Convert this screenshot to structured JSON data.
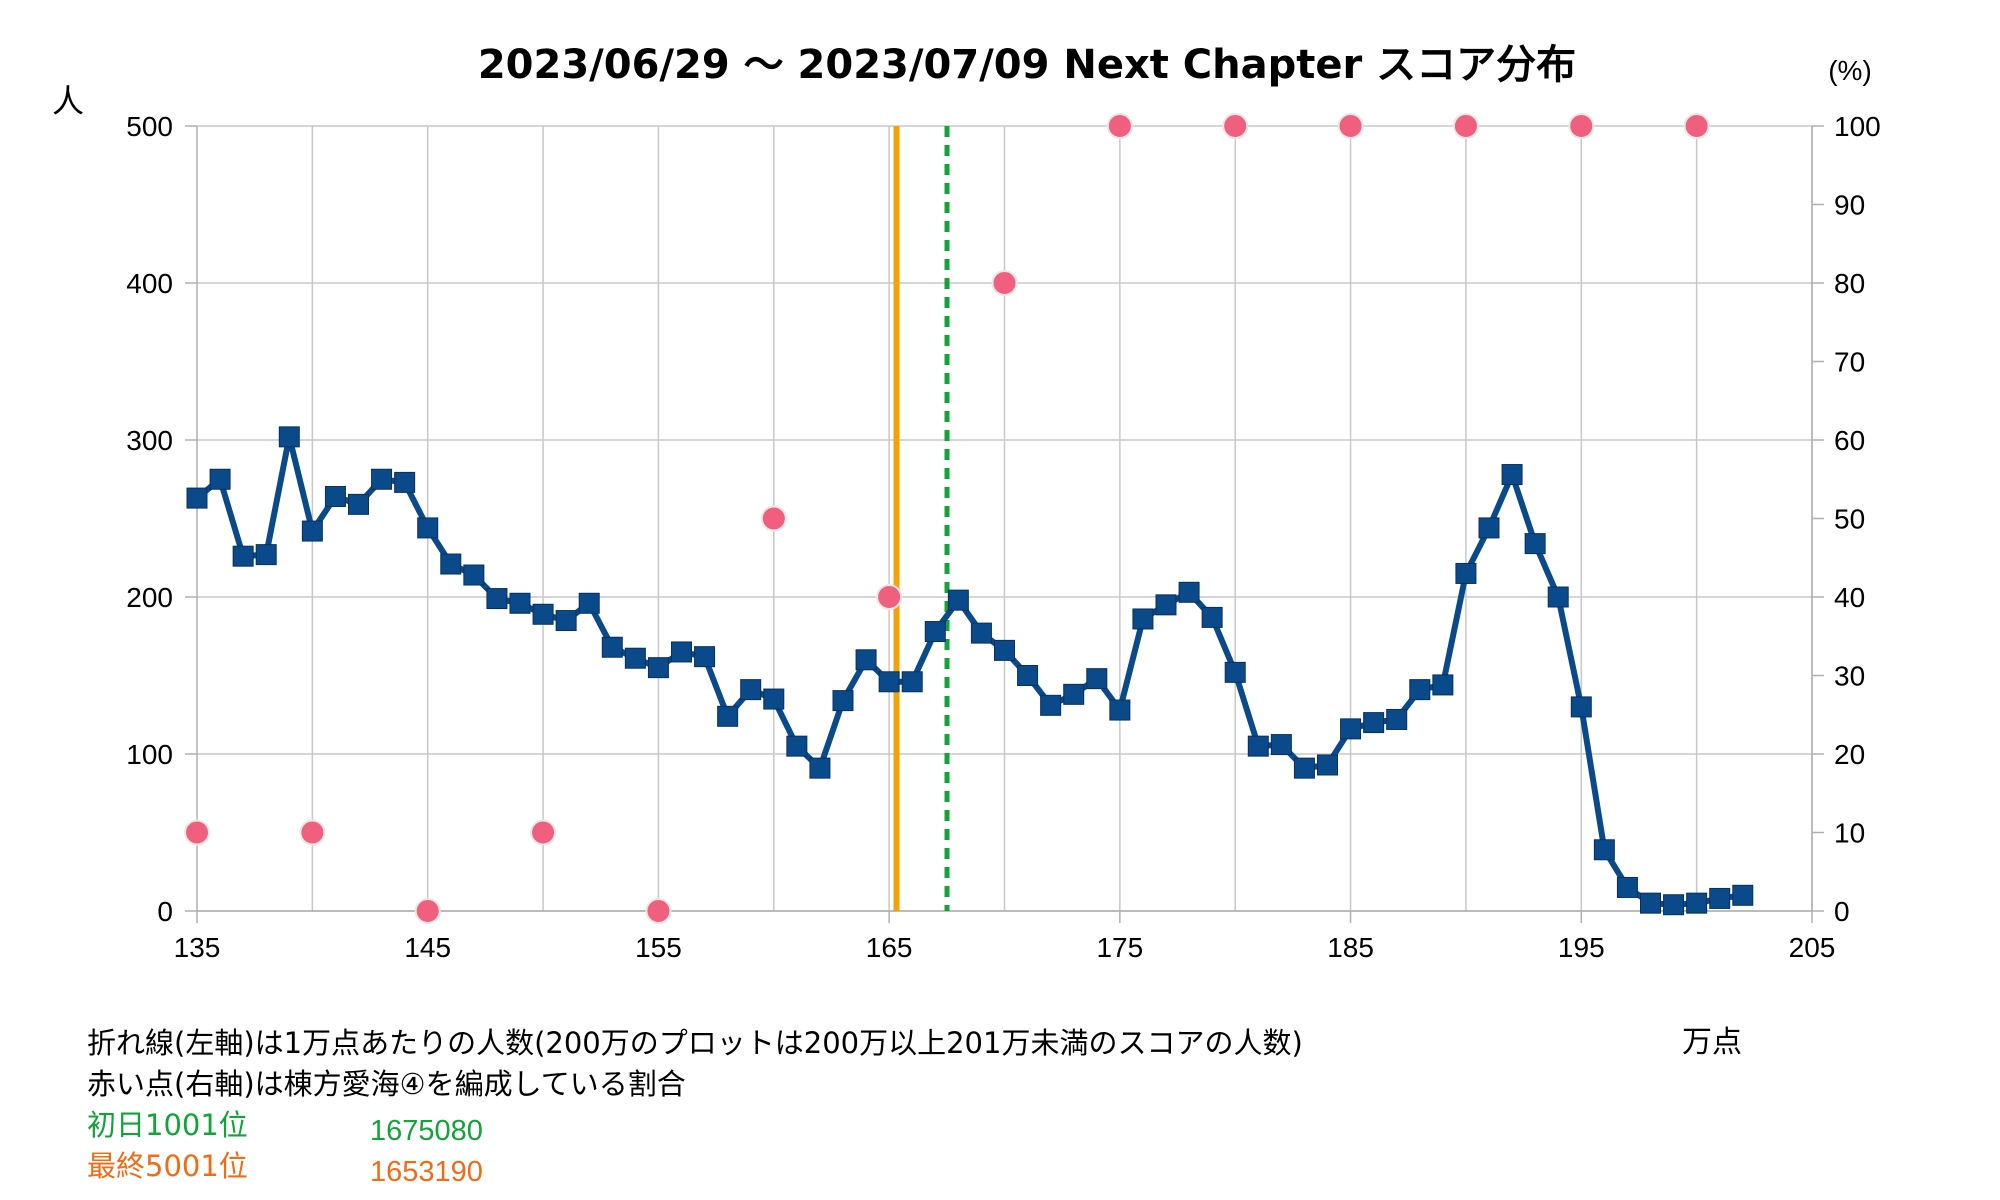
{
  "chart_data": {
    "type": "line",
    "title": "2023/06/29 〜 2023/07/09 Next Chapter スコア分布",
    "ylabel_left": "人",
    "ylabel_right": "(%)",
    "xlabel": "万点",
    "x_range": [
      135,
      205
    ],
    "x_ticks": [
      135,
      145,
      155,
      165,
      175,
      185,
      195,
      205
    ],
    "y_left_range": [
      0,
      500
    ],
    "y_left_ticks": [
      0,
      100,
      200,
      300,
      400,
      500
    ],
    "y_right_range": [
      0,
      100
    ],
    "y_right_ticks": [
      0,
      10,
      20,
      30,
      40,
      50,
      60,
      70,
      80,
      90,
      100
    ],
    "grid": true,
    "series": [
      {
        "axis": "left",
        "color": "#0b4a8a",
        "x": [
          135,
          136,
          137,
          138,
          139,
          140,
          141,
          142,
          143,
          144,
          145,
          146,
          147,
          148,
          149,
          150,
          151,
          152,
          153,
          154,
          155,
          156,
          157,
          158,
          159,
          160,
          161,
          162,
          163,
          164,
          165,
          166,
          167,
          168,
          169,
          170,
          171,
          172,
          173,
          174,
          175,
          176,
          177,
          178,
          179,
          180,
          181,
          182,
          183,
          184,
          185,
          186,
          187,
          188,
          189,
          190,
          191,
          192,
          193,
          194,
          195,
          196,
          197,
          198,
          199,
          200,
          201,
          202
        ],
        "values": [
          263,
          275,
          226,
          227,
          302,
          242,
          264,
          259,
          275,
          273,
          244,
          221,
          214,
          199,
          196,
          189,
          185,
          196,
          168,
          161,
          155,
          165,
          162,
          124,
          141,
          135,
          105,
          91,
          134,
          160,
          146,
          146,
          178,
          198,
          177,
          166,
          150,
          131,
          138,
          148,
          128,
          186,
          195,
          203,
          187,
          152,
          105,
          106,
          91,
          93,
          116,
          120,
          122,
          141,
          144,
          215,
          244,
          278,
          234,
          200,
          130,
          39,
          15,
          5,
          4,
          5,
          8,
          10
        ]
      },
      {
        "axis": "right",
        "color": "#f0607e",
        "x": [
          135,
          140,
          145,
          150,
          155,
          160,
          165,
          170,
          175,
          180,
          185,
          190,
          195,
          200
        ],
        "values": [
          10,
          10,
          0,
          10,
          0,
          50,
          40,
          80,
          100,
          100,
          100,
          100,
          100,
          100
        ]
      }
    ],
    "reference_lines": [
      {
        "x": 165.319,
        "color": "#f5a20a",
        "style": "solid"
      },
      {
        "x": 167.508,
        "color": "#13a33a",
        "style": "dashed"
      }
    ]
  },
  "notes": {
    "line1": "折れ線(左軸)は1万点あたりの人数(200万のプロットは200万以上201万未満のスコアの人数)",
    "line2": "赤い点(右軸)は棟方愛海④を編成している割合",
    "first_day_label": "初日1001位",
    "first_day_value": "1675080",
    "final_label": "最終5001位",
    "final_value": "1653190"
  }
}
